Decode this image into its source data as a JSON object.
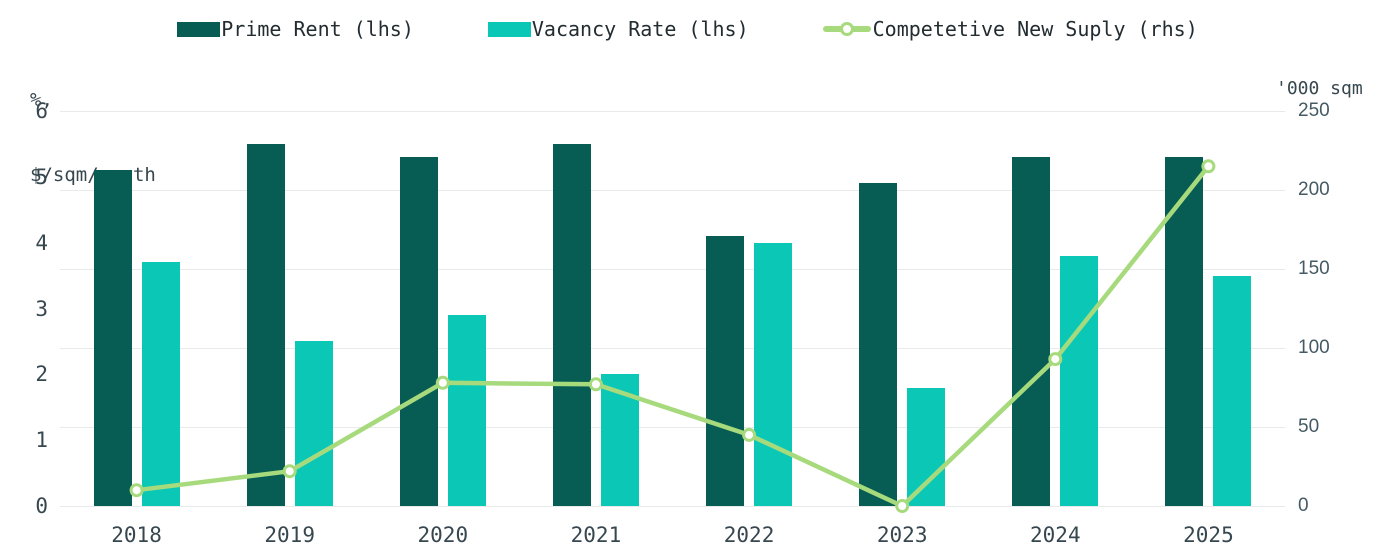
{
  "legend": [
    {
      "label": "Prime Rent (lhs)",
      "type": "bar-swatch",
      "color": "#075d53"
    },
    {
      "label": "Vacancy Rate (lhs)",
      "type": "bar-swatch",
      "color": "#0bc8b6"
    },
    {
      "label": "Competetive New Suply (rhs)",
      "type": "line-swatch",
      "color": "#a7da7c"
    }
  ],
  "axes": {
    "left_title_line1": "%,",
    "left_title_line2": "$/sqm/month",
    "right_title": "'000 sqm",
    "left_ticks": [
      6,
      5,
      4,
      3,
      2,
      1,
      0
    ],
    "right_ticks": [
      250,
      200,
      150,
      100,
      50,
      0
    ]
  },
  "chart_data": {
    "type": "bar+line",
    "categories": [
      "2018",
      "2019",
      "2020",
      "2021",
      "2022",
      "2023",
      "2024",
      "2025"
    ],
    "series": [
      {
        "name": "Prime Rent (lhs)",
        "type": "bar",
        "axis": "left",
        "color": "#075d53",
        "values": [
          5.1,
          5.5,
          5.3,
          5.5,
          4.1,
          4.9,
          5.3,
          5.3
        ]
      },
      {
        "name": "Vacancy Rate (lhs)",
        "type": "bar",
        "axis": "left",
        "color": "#0bc8b6",
        "values": [
          3.7,
          2.5,
          2.9,
          2.0,
          4.0,
          1.8,
          3.8,
          3.5
        ]
      },
      {
        "name": "Competetive New Suply (rhs)",
        "type": "line",
        "axis": "right",
        "color": "#a7da7c",
        "marker": "circle-white-fill",
        "values": [
          10,
          22,
          78,
          77,
          45,
          0,
          93,
          215
        ]
      }
    ],
    "left_axis_range": [
      0,
      6
    ],
    "right_axis_range": [
      0,
      250
    ],
    "grid": "horizontal gridlines aligned to right-axis ticks",
    "legend_position": "top-center",
    "title": ""
  },
  "colors": {
    "prime_rent_bar": "#075d53",
    "vacancy_rate_bar": "#0bc8b6",
    "supply_line": "#a7da7c",
    "gridline": "#e8eaea",
    "tick_text": "#37474f",
    "legend_text": "#222c31",
    "background": "#ffffff"
  }
}
